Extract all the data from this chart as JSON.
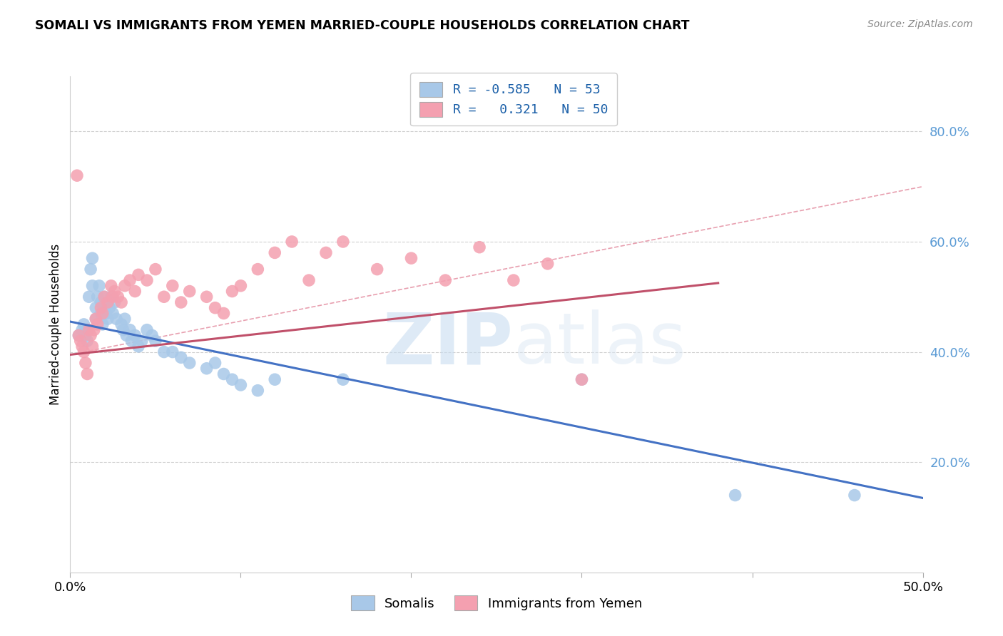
{
  "title": "SOMALI VS IMMIGRANTS FROM YEMEN MARRIED-COUPLE HOUSEHOLDS CORRELATION CHART",
  "source": "Source: ZipAtlas.com",
  "ylabel": "Married-couple Households",
  "ytick_vals": [
    0.2,
    0.4,
    0.6,
    0.8
  ],
  "xlim": [
    0.0,
    0.5
  ],
  "ylim": [
    0.0,
    0.9
  ],
  "legend_blue_R": "-0.585",
  "legend_blue_N": "53",
  "legend_pink_R": "0.321",
  "legend_pink_N": "50",
  "legend_blue_label": "Somalis",
  "legend_pink_label": "Immigrants from Yemen",
  "blue_color": "#a8c8e8",
  "pink_color": "#f4a0b0",
  "blue_line_color": "#4472c4",
  "pink_line_color": "#c0506a",
  "dashed_line_color": "#e8a0b0",
  "watermark_zip": "ZIP",
  "watermark_atlas": "atlas",
  "blue_scatter_x": [
    0.005,
    0.007,
    0.008,
    0.009,
    0.01,
    0.01,
    0.011,
    0.012,
    0.013,
    0.013,
    0.015,
    0.015,
    0.016,
    0.017,
    0.018,
    0.018,
    0.019,
    0.02,
    0.02,
    0.021,
    0.022,
    0.023,
    0.024,
    0.025,
    0.026,
    0.027,
    0.03,
    0.031,
    0.032,
    0.033,
    0.035,
    0.036,
    0.038,
    0.04,
    0.042,
    0.045,
    0.048,
    0.05,
    0.055,
    0.06,
    0.065,
    0.07,
    0.08,
    0.085,
    0.09,
    0.095,
    0.1,
    0.11,
    0.12,
    0.16,
    0.3,
    0.39,
    0.46
  ],
  "blue_scatter_y": [
    0.43,
    0.44,
    0.45,
    0.43,
    0.44,
    0.42,
    0.5,
    0.55,
    0.57,
    0.52,
    0.48,
    0.46,
    0.5,
    0.52,
    0.49,
    0.47,
    0.45,
    0.5,
    0.48,
    0.47,
    0.46,
    0.48,
    0.5,
    0.47,
    0.49,
    0.46,
    0.45,
    0.44,
    0.46,
    0.43,
    0.44,
    0.42,
    0.43,
    0.41,
    0.42,
    0.44,
    0.43,
    0.42,
    0.4,
    0.4,
    0.39,
    0.38,
    0.37,
    0.38,
    0.36,
    0.35,
    0.34,
    0.33,
    0.35,
    0.35,
    0.35,
    0.14,
    0.14
  ],
  "pink_scatter_x": [
    0.004,
    0.005,
    0.006,
    0.007,
    0.008,
    0.009,
    0.01,
    0.011,
    0.012,
    0.013,
    0.014,
    0.015,
    0.016,
    0.018,
    0.019,
    0.02,
    0.022,
    0.024,
    0.025,
    0.026,
    0.028,
    0.03,
    0.032,
    0.035,
    0.038,
    0.04,
    0.045,
    0.05,
    0.055,
    0.06,
    0.065,
    0.07,
    0.08,
    0.085,
    0.09,
    0.095,
    0.1,
    0.11,
    0.12,
    0.13,
    0.14,
    0.15,
    0.16,
    0.18,
    0.2,
    0.22,
    0.24,
    0.26,
    0.28,
    0.3
  ],
  "pink_scatter_y": [
    0.72,
    0.43,
    0.42,
    0.41,
    0.4,
    0.38,
    0.36,
    0.44,
    0.43,
    0.41,
    0.44,
    0.46,
    0.45,
    0.48,
    0.47,
    0.5,
    0.49,
    0.52,
    0.5,
    0.51,
    0.5,
    0.49,
    0.52,
    0.53,
    0.51,
    0.54,
    0.53,
    0.55,
    0.5,
    0.52,
    0.49,
    0.51,
    0.5,
    0.48,
    0.47,
    0.51,
    0.52,
    0.55,
    0.58,
    0.6,
    0.53,
    0.58,
    0.6,
    0.55,
    0.57,
    0.53,
    0.59,
    0.53,
    0.56,
    0.35
  ],
  "blue_line_x": [
    0.0,
    0.5
  ],
  "blue_line_y": [
    0.455,
    0.135
  ],
  "pink_line_x": [
    0.0,
    0.38
  ],
  "pink_line_y": [
    0.395,
    0.525
  ],
  "dashed_line_x": [
    0.0,
    0.5
  ],
  "dashed_line_y": [
    0.395,
    0.7
  ]
}
